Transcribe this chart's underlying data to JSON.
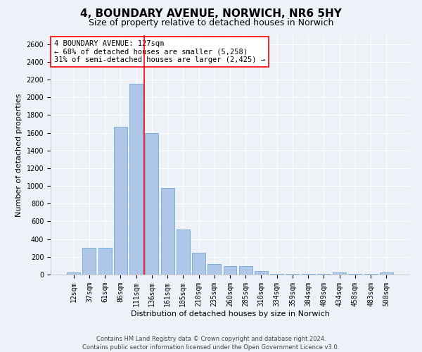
{
  "title": "4, BOUNDARY AVENUE, NORWICH, NR6 5HY",
  "subtitle": "Size of property relative to detached houses in Norwich",
  "xlabel": "Distribution of detached houses by size in Norwich",
  "ylabel": "Number of detached properties",
  "categories": [
    "12sqm",
    "37sqm",
    "61sqm",
    "86sqm",
    "111sqm",
    "136sqm",
    "161sqm",
    "185sqm",
    "210sqm",
    "235sqm",
    "260sqm",
    "285sqm",
    "310sqm",
    "334sqm",
    "359sqm",
    "384sqm",
    "409sqm",
    "434sqm",
    "458sqm",
    "483sqm",
    "508sqm"
  ],
  "values": [
    20,
    300,
    300,
    1670,
    2150,
    1600,
    975,
    510,
    245,
    120,
    95,
    95,
    40,
    10,
    5,
    5,
    5,
    20,
    5,
    5,
    20
  ],
  "bar_color": "#aec6e8",
  "bar_edge_color": "#5b9bd5",
  "vline_x": 4.5,
  "vline_color": "red",
  "annotation_text": "4 BOUNDARY AVENUE: 127sqm\n← 68% of detached houses are smaller (5,258)\n31% of semi-detached houses are larger (2,425) →",
  "annotation_box_color": "white",
  "annotation_box_edge_color": "red",
  "ylim": [
    0,
    2700
  ],
  "yticks": [
    0,
    200,
    400,
    600,
    800,
    1000,
    1200,
    1400,
    1600,
    1800,
    2000,
    2200,
    2400,
    2600
  ],
  "footer_line1": "Contains HM Land Registry data © Crown copyright and database right 2024.",
  "footer_line2": "Contains public sector information licensed under the Open Government Licence v3.0.",
  "bg_color": "#eef2f8",
  "title_fontsize": 11,
  "subtitle_fontsize": 9,
  "annotation_fontsize": 7.5,
  "xlabel_fontsize": 8,
  "ylabel_fontsize": 8,
  "tick_fontsize": 7,
  "footer_fontsize": 6
}
